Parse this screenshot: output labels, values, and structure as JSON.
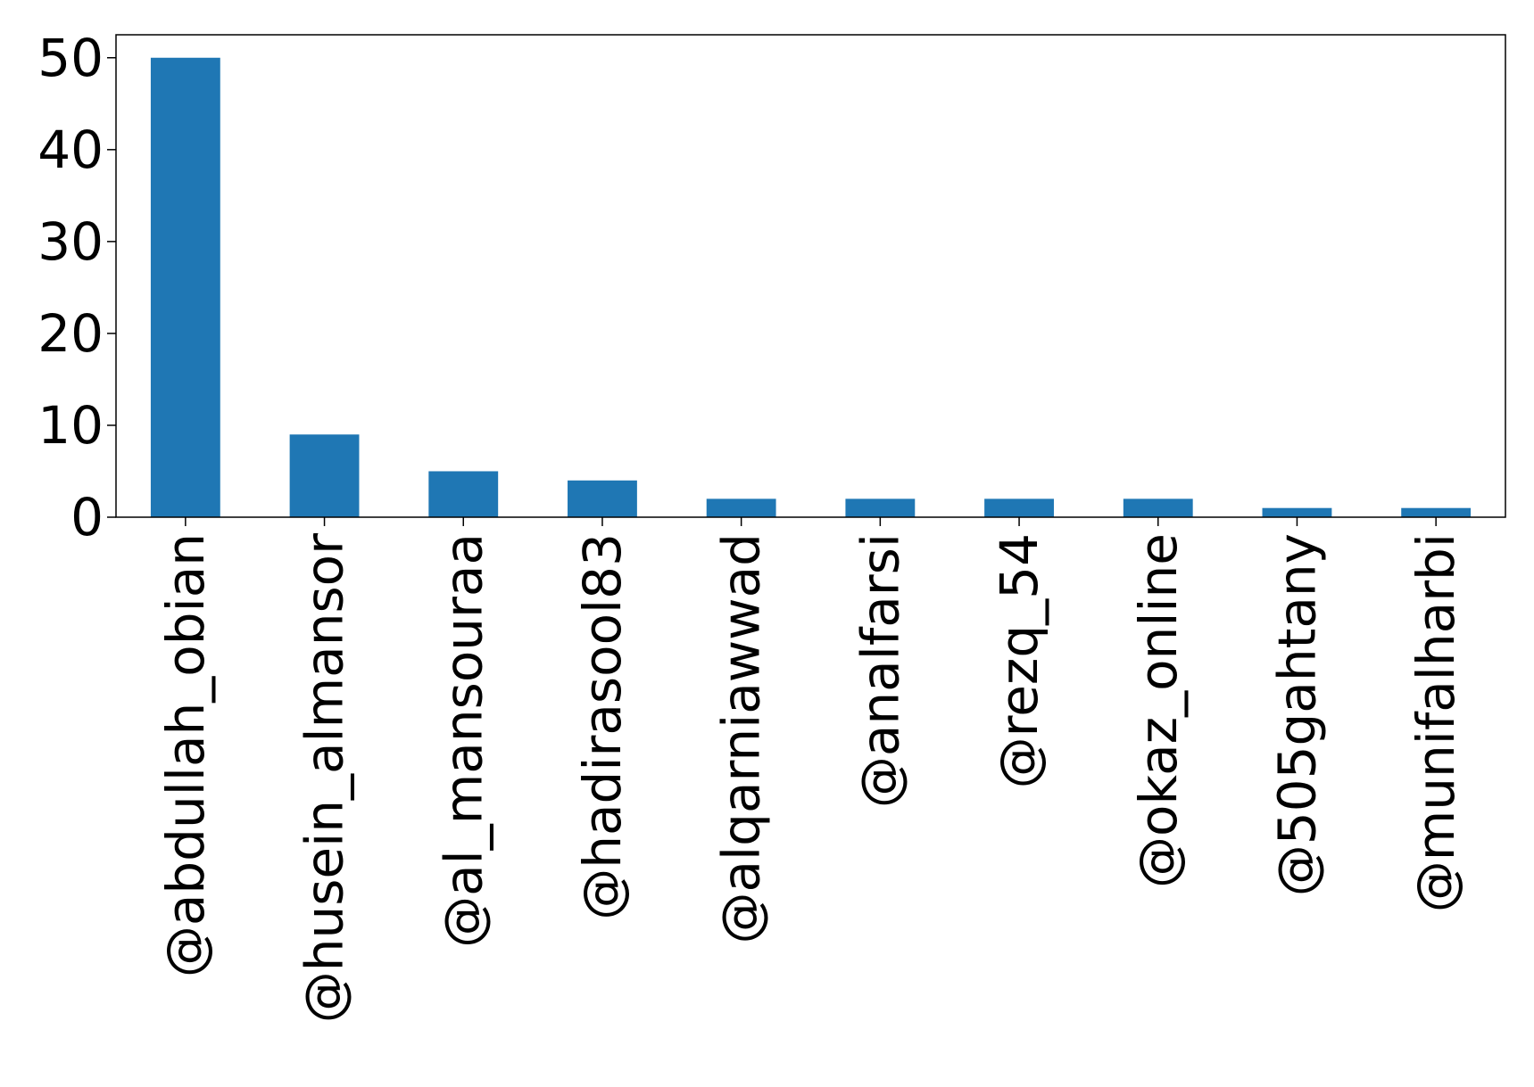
{
  "chart_data": {
    "type": "bar",
    "title": "",
    "xlabel": "",
    "ylabel": "",
    "categories": [
      "@abdullah_obian",
      "@husein_almansor",
      "@al_mansouraa",
      "@hadirasool83",
      "@alqarniawwad",
      "@analfarsi",
      "@rezq_54",
      "@okaz_online",
      "@505gahtany",
      "@munifalharbi"
    ],
    "values": [
      50,
      9,
      5,
      4,
      2,
      2,
      2,
      2,
      1,
      1
    ],
    "ylim": [
      0,
      52.5
    ],
    "yticks": [
      0,
      10,
      20,
      30,
      40,
      50
    ],
    "bar_color": "#1f77b4",
    "grid": false,
    "legend": "none"
  }
}
